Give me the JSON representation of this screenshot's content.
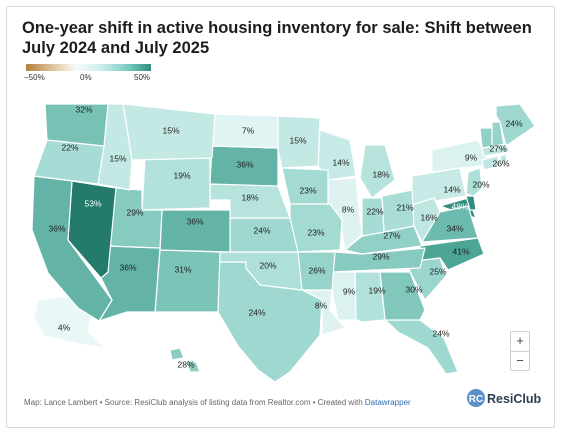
{
  "title": "One-year shift in active housing inventory for sale: Shift between July 2024 and July 2025",
  "legend": {
    "min": "−50%",
    "mid": "0%",
    "max": "50%"
  },
  "map_data": {
    "type": "choropleth",
    "region": "United States",
    "scale": {
      "min": -50,
      "mid": 0,
      "max": 50,
      "unit": "%"
    },
    "states": [
      {
        "id": "WA",
        "label": "32%",
        "value": 32
      },
      {
        "id": "OR",
        "label": "22%",
        "value": 22
      },
      {
        "id": "CA",
        "label": "36%",
        "value": 36
      },
      {
        "id": "NV",
        "label": "53%",
        "value": 53
      },
      {
        "id": "ID",
        "label": "15%",
        "value": 15
      },
      {
        "id": "MT",
        "label": "15%",
        "value": 15
      },
      {
        "id": "WY",
        "label": "19%",
        "value": 19
      },
      {
        "id": "UT",
        "label": "29%",
        "value": 29
      },
      {
        "id": "AZ",
        "label": "36%",
        "value": 36
      },
      {
        "id": "CO",
        "label": "36%",
        "value": 36
      },
      {
        "id": "NM",
        "label": "31%",
        "value": 31
      },
      {
        "id": "ND",
        "label": "7%",
        "value": 7
      },
      {
        "id": "SD",
        "label": "36%",
        "value": 36
      },
      {
        "id": "NE",
        "label": "18%",
        "value": 18
      },
      {
        "id": "KS",
        "label": "24%",
        "value": 24
      },
      {
        "id": "OK",
        "label": "20%",
        "value": 20
      },
      {
        "id": "TX",
        "label": "24%",
        "value": 24
      },
      {
        "id": "MN",
        "label": "15%",
        "value": 15
      },
      {
        "id": "IA",
        "label": "23%",
        "value": 23
      },
      {
        "id": "MO",
        "label": "23%",
        "value": 23
      },
      {
        "id": "AR",
        "label": "26%",
        "value": 26
      },
      {
        "id": "LA",
        "label": "8%",
        "value": 8
      },
      {
        "id": "WI",
        "label": "14%",
        "value": 14
      },
      {
        "id": "IL",
        "label": "8%",
        "value": 8
      },
      {
        "id": "MI",
        "label": "18%",
        "value": 18
      },
      {
        "id": "IN",
        "label": "22%",
        "value": 22
      },
      {
        "id": "OH",
        "label": "21%",
        "value": 21
      },
      {
        "id": "KY",
        "label": "27%",
        "value": 27
      },
      {
        "id": "TN",
        "label": "29%",
        "value": 29
      },
      {
        "id": "MS",
        "label": "9%",
        "value": 9
      },
      {
        "id": "AL",
        "label": "19%",
        "value": 19
      },
      {
        "id": "GA",
        "label": "30%",
        "value": 30
      },
      {
        "id": "FL",
        "label": "24%",
        "value": 24
      },
      {
        "id": "SC",
        "label": "25%",
        "value": 25
      },
      {
        "id": "NC",
        "label": "41%",
        "value": 41
      },
      {
        "id": "VA",
        "label": "34%",
        "value": 34
      },
      {
        "id": "WV",
        "label": "16%",
        "value": 16
      },
      {
        "id": "MD",
        "label": "48%",
        "value": 48
      },
      {
        "id": "PA",
        "label": "14%",
        "value": 14
      },
      {
        "id": "NY",
        "label": "9%",
        "value": 9
      },
      {
        "id": "NJ",
        "label": "20%",
        "value": 20
      },
      {
        "id": "VT",
        "label": "27%",
        "value": 27
      },
      {
        "id": "NH",
        "label": "26%",
        "value": 26
      },
      {
        "id": "ME",
        "label": "24%",
        "value": 24
      },
      {
        "id": "AK",
        "label": "4%",
        "value": 4
      },
      {
        "id": "HI",
        "label": "28%",
        "value": 28
      }
    ]
  },
  "zoom": {
    "in": "+",
    "out": "−"
  },
  "footer": {
    "text": "Map: Lance Lambert • Source: ResiClub analysis of listing data from Realtor.com • Created with ",
    "link": "Datawrapper"
  },
  "brand": {
    "name": "ResiClub",
    "mark": "RC"
  }
}
